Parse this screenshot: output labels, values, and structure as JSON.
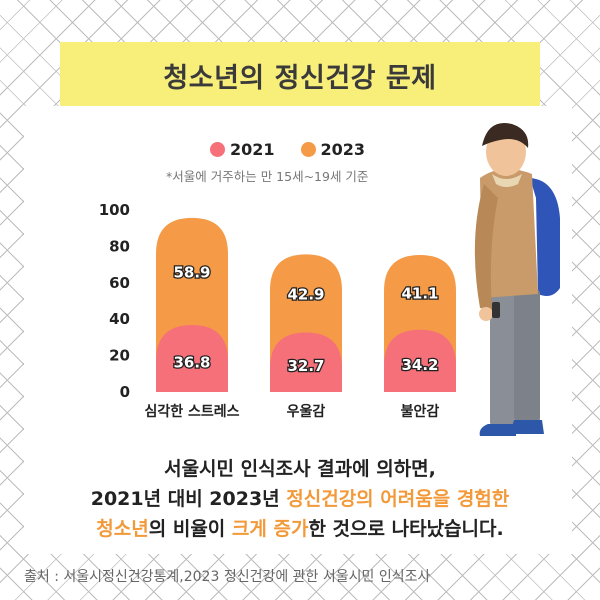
{
  "title": "청소년의 정신건강 문제",
  "note": "*서울에 거주하는 만 15세~19세 기준",
  "description": {
    "line1": "서울시민 인식조사 결과에 의하면,",
    "line2_a": "2021년 대비 2023년 ",
    "line2_b": "정신건강의 어려움을 경험한",
    "line3_a": "청소년",
    "line3_b": "의 비율이 ",
    "line3_c": "크게 증가",
    "line3_d": "한 것으로 나타났습니다."
  },
  "source": "출처 : 서울시정신건강통계,2023 정신건강에 관한 서울시민 인식조사",
  "colors": {
    "s2021": "#f6707a",
    "s2023": "#f59a47",
    "title_bg": "#f8ee7a",
    "accent": "#f29a3a"
  },
  "chart_data": {
    "type": "bar",
    "stacked": true,
    "categories": [
      "심각한 스트레스",
      "우울감",
      "불안감"
    ],
    "series": [
      {
        "name": "2021",
        "values": [
          36.8,
          32.7,
          34.2
        ]
      },
      {
        "name": "2023",
        "values": [
          58.9,
          42.9,
          41.1
        ]
      }
    ],
    "yticks": [
      "0",
      "20",
      "40",
      "60",
      "80",
      "100"
    ],
    "ylim": [
      0,
      100
    ],
    "legend": "top",
    "grid": false
  }
}
